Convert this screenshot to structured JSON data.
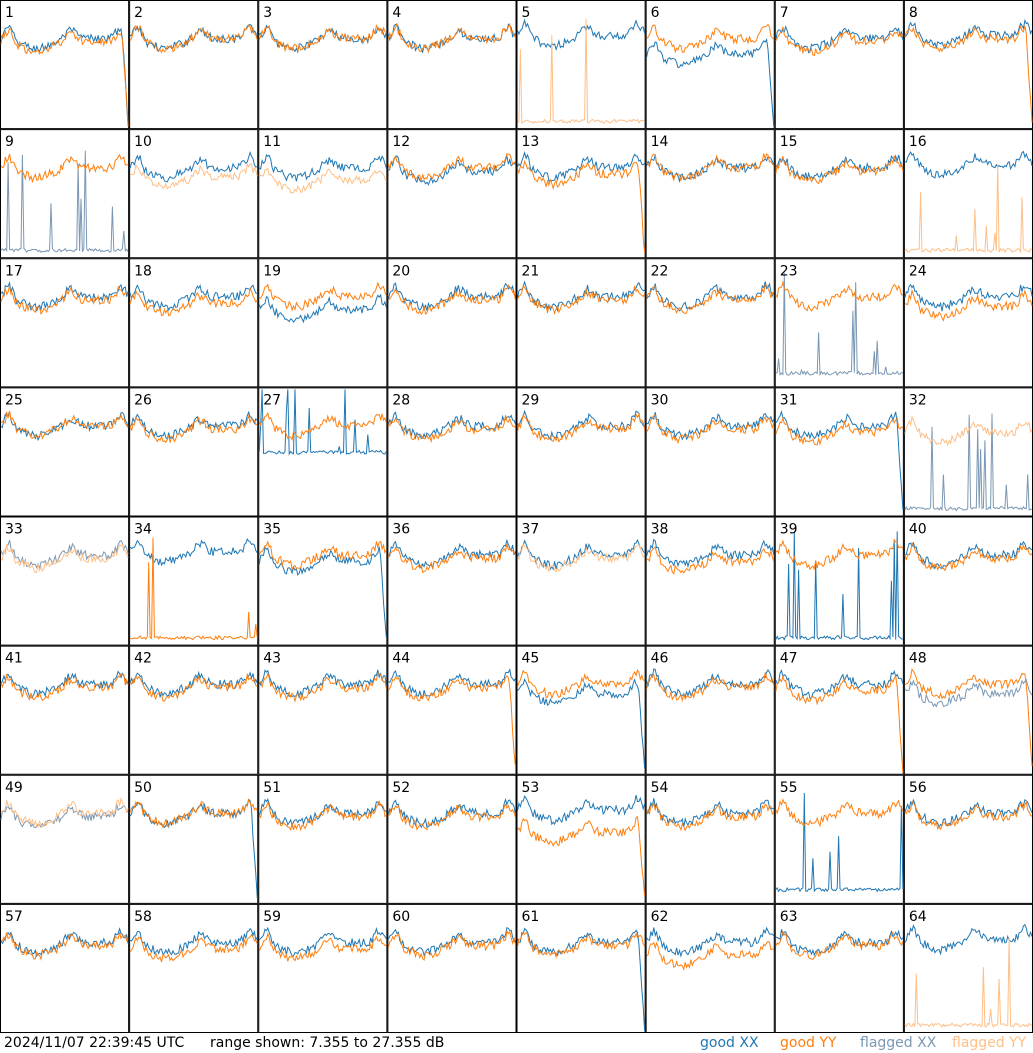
{
  "footer": {
    "timestamp": "2024/11/07 22:39:45 UTC",
    "range_text": "range shown: 7.355 to 27.355 dB"
  },
  "legend": [
    {
      "label": "good XX",
      "color": "#1f77b4"
    },
    {
      "label": "good YY",
      "color": "#ff7f0e"
    },
    {
      "label": "flagged XX",
      "color": "#7a97b3"
    },
    {
      "label": "flagged YY",
      "color": "#ffbf86"
    }
  ],
  "chart_data": {
    "type": "line",
    "layout": "small-multiples 8x8",
    "yrange_db": [
      7.355,
      27.355
    ],
    "grid": false,
    "legend_position": "bottom-right",
    "series_names": [
      "good XX",
      "good YY",
      "flagged XX",
      "flagged YY"
    ],
    "panels": [
      {
        "id": "1",
        "xx": "good",
        "yy": "good",
        "xx_level": 21.5,
        "yy_level": 21.0,
        "xx_drop": true,
        "yy_drop": true,
        "xx_spikes": false,
        "yy_spikes": false
      },
      {
        "id": "2",
        "xx": "good",
        "yy": "good",
        "xx_level": 21.5,
        "yy_level": 21.5,
        "xx_drop": false,
        "yy_drop": false,
        "xx_spikes": false,
        "yy_spikes": false
      },
      {
        "id": "3",
        "xx": "good",
        "yy": "good",
        "xx_level": 21.5,
        "yy_level": 21.5,
        "xx_drop": false,
        "yy_drop": false,
        "xx_spikes": false,
        "yy_spikes": false
      },
      {
        "id": "4",
        "xx": "good",
        "yy": "good",
        "xx_level": 21.5,
        "yy_level": 21.5,
        "xx_drop": false,
        "yy_drop": false,
        "xx_spikes": false,
        "yy_spikes": false
      },
      {
        "id": "5",
        "xx": "good",
        "yy": "flagged",
        "xx_level": 22.0,
        "yy_level": 8.0,
        "xx_drop": false,
        "yy_drop": false,
        "xx_spikes": false,
        "yy_spikes": true
      },
      {
        "id": "6",
        "xx": "good",
        "yy": "good",
        "xx_level": 19.0,
        "yy_level": 21.5,
        "xx_drop": true,
        "yy_drop": false,
        "xx_spikes": false,
        "yy_spikes": false
      },
      {
        "id": "7",
        "xx": "good",
        "yy": "good",
        "xx_level": 21.5,
        "yy_level": 21.0,
        "xx_drop": false,
        "yy_drop": false,
        "xx_spikes": false,
        "yy_spikes": false
      },
      {
        "id": "8",
        "xx": "good",
        "yy": "good",
        "xx_level": 22.0,
        "yy_level": 21.5,
        "xx_drop": false,
        "yy_drop": true,
        "xx_spikes": false,
        "yy_spikes": false
      },
      {
        "id": "9",
        "xx": "flagged",
        "yy": "good",
        "xx_level": 8.0,
        "yy_level": 21.5,
        "xx_drop": false,
        "yy_drop": false,
        "xx_spikes": true,
        "yy_spikes": false
      },
      {
        "id": "10",
        "xx": "good",
        "yy": "flagged",
        "xx_level": 21.5,
        "yy_level": 20.0,
        "xx_drop": false,
        "yy_drop": false,
        "xx_spikes": false,
        "yy_spikes": false
      },
      {
        "id": "11",
        "xx": "good",
        "yy": "flagged",
        "xx_level": 21.5,
        "yy_level": 19.5,
        "xx_drop": false,
        "yy_drop": false,
        "xx_spikes": false,
        "yy_spikes": false
      },
      {
        "id": "12",
        "xx": "good",
        "yy": "good",
        "xx_level": 21.0,
        "yy_level": 21.5,
        "xx_drop": false,
        "yy_drop": false,
        "xx_spikes": false,
        "yy_spikes": false
      },
      {
        "id": "13",
        "xx": "good",
        "yy": "good",
        "xx_level": 21.5,
        "yy_level": 20.5,
        "xx_drop": false,
        "yy_drop": true,
        "xx_spikes": false,
        "yy_spikes": false
      },
      {
        "id": "14",
        "xx": "good",
        "yy": "good",
        "xx_level": 21.5,
        "yy_level": 21.5,
        "xx_drop": false,
        "yy_drop": false,
        "xx_spikes": false,
        "yy_spikes": false
      },
      {
        "id": "15",
        "xx": "good",
        "yy": "good",
        "xx_level": 21.5,
        "yy_level": 21.0,
        "xx_drop": false,
        "yy_drop": false,
        "xx_spikes": false,
        "yy_spikes": false
      },
      {
        "id": "16",
        "xx": "good",
        "yy": "flagged",
        "xx_level": 22.0,
        "yy_level": 8.0,
        "xx_drop": false,
        "yy_drop": false,
        "xx_spikes": false,
        "yy_spikes": true
      },
      {
        "id": "17",
        "xx": "good",
        "yy": "good",
        "xx_level": 21.5,
        "yy_level": 21.0,
        "xx_drop": false,
        "yy_drop": false,
        "xx_spikes": false,
        "yy_spikes": false
      },
      {
        "id": "18",
        "xx": "good",
        "yy": "good",
        "xx_level": 21.5,
        "yy_level": 20.5,
        "xx_drop": false,
        "yy_drop": false,
        "xx_spikes": false,
        "yy_spikes": false
      },
      {
        "id": "19",
        "xx": "good",
        "yy": "good",
        "xx_level": 19.5,
        "yy_level": 21.5,
        "xx_drop": false,
        "yy_drop": false,
        "xx_spikes": false,
        "yy_spikes": false
      },
      {
        "id": "20",
        "xx": "good",
        "yy": "good",
        "xx_level": 21.5,
        "yy_level": 21.0,
        "xx_drop": false,
        "yy_drop": false,
        "xx_spikes": false,
        "yy_spikes": false
      },
      {
        "id": "21",
        "xx": "good",
        "yy": "good",
        "xx_level": 21.5,
        "yy_level": 21.0,
        "xx_drop": false,
        "yy_drop": false,
        "xx_spikes": false,
        "yy_spikes": false
      },
      {
        "id": "22",
        "xx": "good",
        "yy": "good",
        "xx_level": 21.5,
        "yy_level": 21.0,
        "xx_drop": false,
        "yy_drop": false,
        "xx_spikes": false,
        "yy_spikes": false
      },
      {
        "id": "23",
        "xx": "flagged",
        "yy": "good",
        "xx_level": 9.0,
        "yy_level": 21.5,
        "xx_drop": false,
        "yy_drop": false,
        "xx_spikes": true,
        "yy_spikes": false
      },
      {
        "id": "24",
        "xx": "good",
        "yy": "good",
        "xx_level": 21.5,
        "yy_level": 20.0,
        "xx_drop": false,
        "yy_drop": false,
        "xx_spikes": false,
        "yy_spikes": false
      },
      {
        "id": "25",
        "xx": "good",
        "yy": "good",
        "xx_level": 21.5,
        "yy_level": 21.5,
        "xx_drop": false,
        "yy_drop": false,
        "xx_spikes": false,
        "yy_spikes": false
      },
      {
        "id": "26",
        "xx": "good",
        "yy": "good",
        "xx_level": 21.5,
        "yy_level": 21.0,
        "xx_drop": false,
        "yy_drop": false,
        "xx_spikes": false,
        "yy_spikes": false
      },
      {
        "id": "27",
        "xx": "good",
        "yy": "good",
        "xx_level": 17.0,
        "yy_level": 21.5,
        "xx_drop": true,
        "yy_drop": false,
        "xx_spikes": true,
        "yy_spikes": false
      },
      {
        "id": "28",
        "xx": "good",
        "yy": "good",
        "xx_level": 21.5,
        "yy_level": 21.0,
        "xx_drop": false,
        "yy_drop": false,
        "xx_spikes": false,
        "yy_spikes": false
      },
      {
        "id": "29",
        "xx": "good",
        "yy": "good",
        "xx_level": 21.5,
        "yy_level": 21.0,
        "xx_drop": false,
        "yy_drop": false,
        "xx_spikes": false,
        "yy_spikes": false
      },
      {
        "id": "30",
        "xx": "good",
        "yy": "good",
        "xx_level": 21.5,
        "yy_level": 21.0,
        "xx_drop": false,
        "yy_drop": false,
        "xx_spikes": false,
        "yy_spikes": false
      },
      {
        "id": "31",
        "xx": "good",
        "yy": "good",
        "xx_level": 21.5,
        "yy_level": 20.5,
        "xx_drop": true,
        "yy_drop": false,
        "xx_spikes": false,
        "yy_spikes": false
      },
      {
        "id": "32",
        "xx": "flagged",
        "yy": "flagged",
        "xx_level": 8.0,
        "yy_level": 20.5,
        "xx_drop": false,
        "yy_drop": false,
        "xx_spikes": true,
        "yy_spikes": false
      },
      {
        "id": "33",
        "xx": "flagged",
        "yy": "flagged",
        "xx_level": 21.5,
        "yy_level": 21.0,
        "xx_drop": false,
        "yy_drop": false,
        "xx_spikes": false,
        "yy_spikes": false
      },
      {
        "id": "34",
        "xx": "good",
        "yy": "good",
        "xx_level": 22.0,
        "yy_level": 8.0,
        "xx_drop": false,
        "yy_drop": false,
        "xx_spikes": false,
        "yy_spikes": true
      },
      {
        "id": "35",
        "xx": "good",
        "yy": "good",
        "xx_level": 20.5,
        "yy_level": 21.5,
        "xx_drop": true,
        "yy_drop": false,
        "xx_spikes": false,
        "yy_spikes": false
      },
      {
        "id": "36",
        "xx": "good",
        "yy": "good",
        "xx_level": 21.5,
        "yy_level": 21.0,
        "xx_drop": false,
        "yy_drop": false,
        "xx_spikes": false,
        "yy_spikes": false
      },
      {
        "id": "37",
        "xx": "good",
        "yy": "flagged",
        "xx_level": 21.5,
        "yy_level": 21.0,
        "xx_drop": false,
        "yy_drop": false,
        "xx_spikes": false,
        "yy_spikes": false
      },
      {
        "id": "38",
        "xx": "good",
        "yy": "good",
        "xx_level": 21.5,
        "yy_level": 20.5,
        "xx_drop": false,
        "yy_drop": false,
        "xx_spikes": false,
        "yy_spikes": false
      },
      {
        "id": "39",
        "xx": "good",
        "yy": "good",
        "xx_level": 8.0,
        "yy_level": 21.5,
        "xx_drop": false,
        "yy_drop": false,
        "xx_spikes": true,
        "yy_spikes": false
      },
      {
        "id": "40",
        "xx": "good",
        "yy": "good",
        "xx_level": 21.5,
        "yy_level": 21.0,
        "xx_drop": false,
        "yy_drop": false,
        "xx_spikes": false,
        "yy_spikes": false
      },
      {
        "id": "41",
        "xx": "good",
        "yy": "good",
        "xx_level": 21.5,
        "yy_level": 21.0,
        "xx_drop": false,
        "yy_drop": false,
        "xx_spikes": false,
        "yy_spikes": false
      },
      {
        "id": "42",
        "xx": "good",
        "yy": "good",
        "xx_level": 21.5,
        "yy_level": 21.0,
        "xx_drop": false,
        "yy_drop": false,
        "xx_spikes": false,
        "yy_spikes": false
      },
      {
        "id": "43",
        "xx": "good",
        "yy": "good",
        "xx_level": 21.5,
        "yy_level": 21.0,
        "xx_drop": false,
        "yy_drop": false,
        "xx_spikes": false,
        "yy_spikes": false
      },
      {
        "id": "44",
        "xx": "good",
        "yy": "good",
        "xx_level": 21.5,
        "yy_level": 21.0,
        "xx_drop": false,
        "yy_drop": true,
        "xx_spikes": false,
        "yy_spikes": false
      },
      {
        "id": "45",
        "xx": "good",
        "yy": "good",
        "xx_level": 20.0,
        "yy_level": 21.5,
        "xx_drop": true,
        "yy_drop": false,
        "xx_spikes": false,
        "yy_spikes": false
      },
      {
        "id": "46",
        "xx": "good",
        "yy": "good",
        "xx_level": 21.5,
        "yy_level": 21.0,
        "xx_drop": false,
        "yy_drop": false,
        "xx_spikes": false,
        "yy_spikes": false
      },
      {
        "id": "47",
        "xx": "good",
        "yy": "good",
        "xx_level": 21.5,
        "yy_level": 20.5,
        "xx_drop": false,
        "yy_drop": true,
        "xx_spikes": false,
        "yy_spikes": false
      },
      {
        "id": "48",
        "xx": "flagged",
        "yy": "good",
        "xx_level": 20.0,
        "yy_level": 21.5,
        "xx_drop": false,
        "yy_drop": true,
        "xx_spikes": false,
        "yy_spikes": false
      },
      {
        "id": "49",
        "xx": "flagged",
        "yy": "flagged",
        "xx_level": 21.0,
        "yy_level": 21.5,
        "xx_drop": false,
        "yy_drop": false,
        "xx_spikes": false,
        "yy_spikes": false
      },
      {
        "id": "50",
        "xx": "good",
        "yy": "good",
        "xx_level": 21.5,
        "yy_level": 21.5,
        "xx_drop": true,
        "yy_drop": false,
        "xx_spikes": false,
        "yy_spikes": false
      },
      {
        "id": "51",
        "xx": "good",
        "yy": "good",
        "xx_level": 21.5,
        "yy_level": 21.0,
        "xx_drop": false,
        "yy_drop": false,
        "xx_spikes": false,
        "yy_spikes": false
      },
      {
        "id": "52",
        "xx": "good",
        "yy": "good",
        "xx_level": 21.5,
        "yy_level": 21.0,
        "xx_drop": false,
        "yy_drop": false,
        "xx_spikes": false,
        "yy_spikes": false
      },
      {
        "id": "53",
        "xx": "good",
        "yy": "good",
        "xx_level": 22.0,
        "yy_level": 18.5,
        "xx_drop": false,
        "yy_drop": true,
        "xx_spikes": false,
        "yy_spikes": false
      },
      {
        "id": "54",
        "xx": "good",
        "yy": "good",
        "xx_level": 21.5,
        "yy_level": 21.0,
        "xx_drop": false,
        "yy_drop": false,
        "xx_spikes": false,
        "yy_spikes": false
      },
      {
        "id": "55",
        "xx": "good",
        "yy": "good",
        "xx_level": 9.0,
        "yy_level": 21.5,
        "xx_drop": false,
        "yy_drop": false,
        "xx_spikes": true,
        "yy_spikes": false
      },
      {
        "id": "56",
        "xx": "good",
        "yy": "good",
        "xx_level": 21.5,
        "yy_level": 21.0,
        "xx_drop": false,
        "yy_drop": false,
        "xx_spikes": false,
        "yy_spikes": false
      },
      {
        "id": "57",
        "xx": "good",
        "yy": "good",
        "xx_level": 21.5,
        "yy_level": 21.0,
        "xx_drop": false,
        "yy_drop": false,
        "xx_spikes": false,
        "yy_spikes": false
      },
      {
        "id": "58",
        "xx": "good",
        "yy": "good",
        "xx_level": 21.5,
        "yy_level": 20.5,
        "xx_drop": false,
        "yy_drop": false,
        "xx_spikes": false,
        "yy_spikes": false
      },
      {
        "id": "59",
        "xx": "good",
        "yy": "good",
        "xx_level": 21.5,
        "yy_level": 20.5,
        "xx_drop": false,
        "yy_drop": false,
        "xx_spikes": false,
        "yy_spikes": false
      },
      {
        "id": "60",
        "xx": "good",
        "yy": "good",
        "xx_level": 21.5,
        "yy_level": 21.0,
        "xx_drop": false,
        "yy_drop": false,
        "xx_spikes": false,
        "yy_spikes": false
      },
      {
        "id": "61",
        "xx": "good",
        "yy": "good",
        "xx_level": 21.5,
        "yy_level": 21.0,
        "xx_drop": true,
        "yy_drop": false,
        "xx_spikes": false,
        "yy_spikes": false
      },
      {
        "id": "62",
        "xx": "good",
        "yy": "good",
        "xx_level": 21.5,
        "yy_level": 19.5,
        "xx_drop": false,
        "yy_drop": false,
        "xx_spikes": false,
        "yy_spikes": false
      },
      {
        "id": "63",
        "xx": "good",
        "yy": "good",
        "xx_level": 21.5,
        "yy_level": 21.0,
        "xx_drop": false,
        "yy_drop": false,
        "xx_spikes": false,
        "yy_spikes": false
      },
      {
        "id": "64",
        "xx": "good",
        "yy": "flagged",
        "xx_level": 22.0,
        "yy_level": 8.0,
        "xx_drop": false,
        "yy_drop": false,
        "xx_spikes": false,
        "yy_spikes": true
      }
    ]
  }
}
